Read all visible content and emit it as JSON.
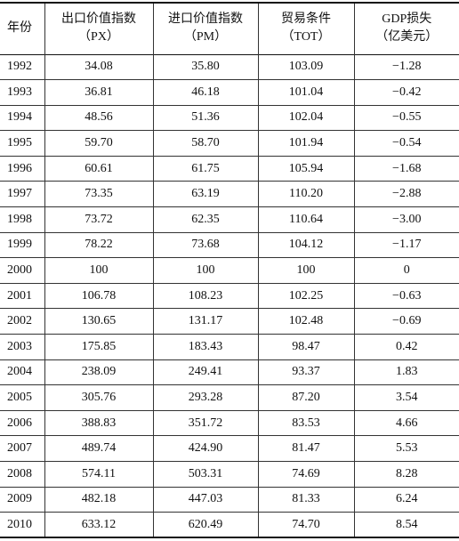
{
  "table": {
    "header": [
      [
        "年份"
      ],
      [
        "出口价值指数",
        "（PX）"
      ],
      [
        "进口价值指数",
        "（PM）"
      ],
      [
        "贸易条件",
        "（TOT）"
      ],
      [
        "GDP损失",
        "（亿美元）"
      ]
    ],
    "rows": [
      [
        "1992",
        "34.08",
        "35.80",
        "103.09",
        "−1.28"
      ],
      [
        "1993",
        "36.81",
        "46.18",
        "101.04",
        "−0.42"
      ],
      [
        "1994",
        "48.56",
        "51.36",
        "102.04",
        "−0.55"
      ],
      [
        "1995",
        "59.70",
        "58.70",
        "101.94",
        "−0.54"
      ],
      [
        "1996",
        "60.61",
        "61.75",
        "105.94",
        "−1.68"
      ],
      [
        "1997",
        "73.35",
        "63.19",
        "110.20",
        "−2.88"
      ],
      [
        "1998",
        "73.72",
        "62.35",
        "110.64",
        "−3.00"
      ],
      [
        "1999",
        "78.22",
        "73.68",
        "104.12",
        "−1.17"
      ],
      [
        "2000",
        "100",
        "100",
        "100",
        "0"
      ],
      [
        "2001",
        "106.78",
        "108.23",
        "102.25",
        "−0.63"
      ],
      [
        "2002",
        "130.65",
        "131.17",
        "102.48",
        "−0.69"
      ],
      [
        "2003",
        "175.85",
        "183.43",
        "98.47",
        "0.42"
      ],
      [
        "2004",
        "238.09",
        "249.41",
        "93.37",
        "1.83"
      ],
      [
        "2005",
        "305.76",
        "293.28",
        "87.20",
        "3.54"
      ],
      [
        "2006",
        "388.83",
        "351.72",
        "83.53",
        "4.66"
      ],
      [
        "2007",
        "489.74",
        "424.90",
        "81.47",
        "5.53"
      ],
      [
        "2008",
        "574.11",
        "503.31",
        "74.69",
        "8.28"
      ],
      [
        "2009",
        "482.18",
        "447.03",
        "81.33",
        "6.24"
      ],
      [
        "2010",
        "633.12",
        "620.49",
        "74.70",
        "8.54"
      ]
    ]
  }
}
